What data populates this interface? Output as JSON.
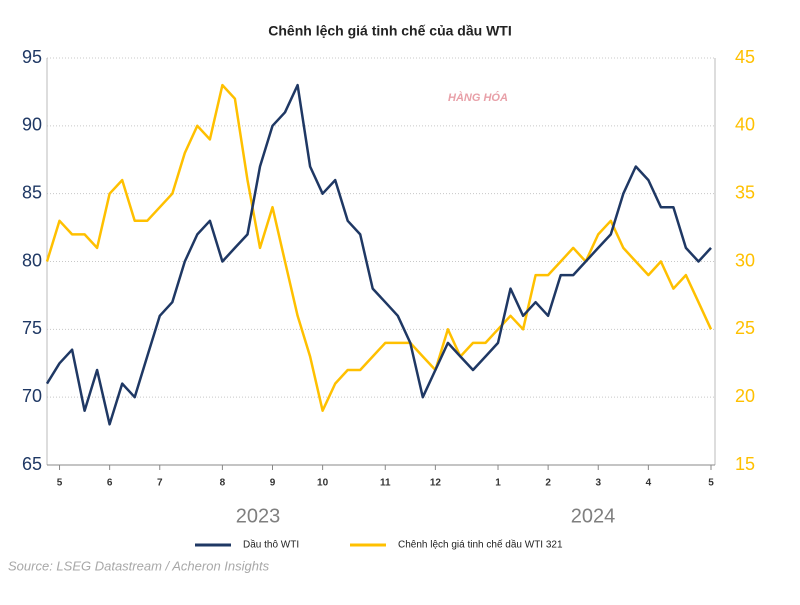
{
  "chart_data": {
    "type": "line",
    "title": "Chênh lệch giá tinh chế của dầu WTI",
    "watermark": "HÀNG HÓA",
    "source": "Source: LSEG Datastream / Acheron Insights",
    "categories": [
      null,
      "5",
      null,
      null,
      null,
      "6",
      null,
      null,
      null,
      "7",
      null,
      null,
      null,
      null,
      "8",
      null,
      null,
      null,
      "9",
      null,
      null,
      null,
      "10",
      null,
      null,
      null,
      null,
      "11",
      null,
      null,
      null,
      "12",
      null,
      null,
      null,
      null,
      "1",
      null,
      null,
      null,
      "2",
      null,
      null,
      null,
      "3",
      null,
      null,
      null,
      "4",
      null,
      null,
      null,
      null,
      "5"
    ],
    "year_labels": [
      "2023",
      "2024"
    ],
    "series": [
      {
        "name": "Dầu thô WTI",
        "color": "#1f3864",
        "axis": "y",
        "values": [
          71,
          72.5,
          73.5,
          69,
          72,
          68,
          71,
          70,
          73,
          76,
          77,
          80,
          82,
          83,
          80,
          81,
          82,
          87,
          90,
          91,
          93,
          87,
          85,
          86,
          83,
          82,
          78,
          77,
          76,
          74,
          70,
          72,
          74,
          73,
          72,
          73,
          74,
          78,
          76,
          77,
          76,
          79,
          79,
          80,
          81,
          82,
          85,
          87,
          86,
          84,
          84,
          81,
          80,
          81
        ]
      },
      {
        "name": "Chênh lệch giá tinh chế dầu WTI 321",
        "color": "#ffc000",
        "axis": "y2",
        "values": [
          30,
          33,
          32,
          32,
          31,
          35,
          36,
          33,
          33,
          34,
          35,
          38,
          40,
          39,
          43,
          42,
          36,
          31,
          34,
          30,
          26,
          23,
          19,
          21,
          22,
          22,
          23,
          24,
          24,
          24,
          23,
          22,
          25,
          23,
          24,
          24,
          25,
          26,
          25,
          29,
          29,
          30,
          31,
          30,
          32,
          33,
          31,
          30,
          29,
          30,
          28,
          29,
          27,
          25
        ]
      }
    ],
    "ylim": [
      65,
      95
    ],
    "yticks": [
      65,
      70,
      75,
      80,
      85,
      90,
      95
    ],
    "y2lim": [
      15,
      45
    ],
    "y2ticks": [
      15,
      20,
      25,
      30,
      35,
      40,
      45
    ],
    "grid": true
  }
}
